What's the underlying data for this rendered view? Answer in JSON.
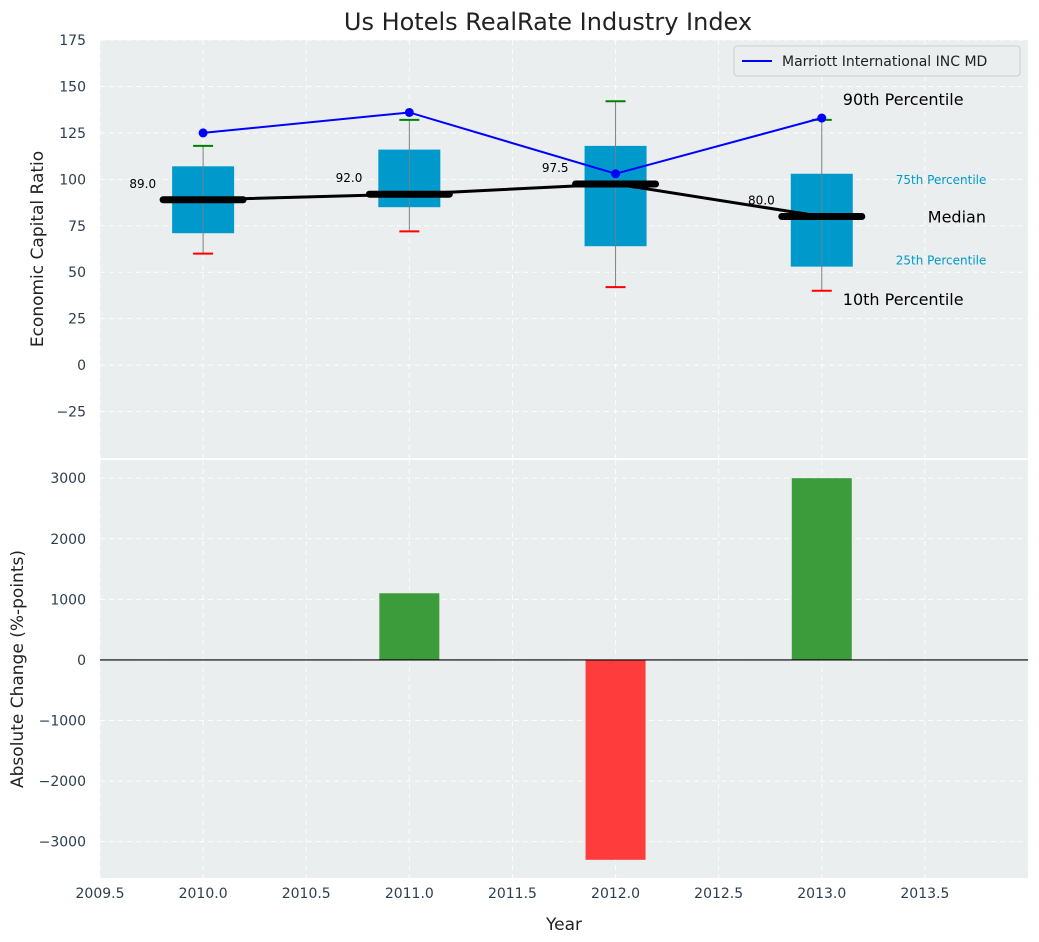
{
  "chart_data": [
    {
      "type": "box",
      "title": "Us Hotels RealRate Industry Index",
      "xlabel": "",
      "ylabel": "Economic Capital Ratio",
      "xlim": [
        2009.5,
        2014.0
      ],
      "ylim": [
        -50,
        175
      ],
      "yticks": [
        -25,
        0,
        25,
        50,
        75,
        100,
        125,
        150,
        175
      ],
      "ytick_labels": [
        "−25",
        "0",
        "25",
        "50",
        "75",
        "100",
        "125",
        "150",
        "175"
      ],
      "grid": true,
      "categories": [
        2010.0,
        2011.0,
        2012.0,
        2013.0
      ],
      "percentiles": {
        "p10": [
          60,
          72,
          42,
          40
        ],
        "p25": [
          71,
          85,
          64,
          53
        ],
        "median": [
          89.0,
          92.0,
          97.5,
          80.0
        ],
        "p75": [
          107,
          116,
          118,
          103
        ],
        "p90": [
          118,
          132,
          142,
          132
        ]
      },
      "median_labels": [
        "89.0",
        "92.0",
        "97.5",
        "80.0"
      ],
      "series": [
        {
          "name": "Marriott International INC MD",
          "x": [
            2010.0,
            2011.0,
            2012.0,
            2013.0
          ],
          "values": [
            125,
            136,
            103,
            133
          ],
          "color": "#0000ff"
        }
      ],
      "legend": {
        "position": "top-right",
        "entries": [
          "Marriott International INC MD"
        ]
      },
      "annotations": {
        "p90": "90th Percentile",
        "p75": "75th Percentile",
        "median": "Median",
        "p25": "25th Percentile",
        "p10": "10th Percentile"
      },
      "colors": {
        "box": "#0099cc",
        "median": "#000000",
        "p90_cap": "#008000",
        "p10_cap": "#ff0000",
        "whisker": "#808080",
        "company": "#0000ff",
        "background": "#eaeeee"
      }
    },
    {
      "type": "bar",
      "xlabel": "Year",
      "ylabel": "Absolute Change (%-points)",
      "xlim": [
        2009.5,
        2014.0
      ],
      "ylim": [
        -3600,
        3300
      ],
      "yticks": [
        -3000,
        -2000,
        -1000,
        0,
        1000,
        2000,
        3000
      ],
      "ytick_labels": [
        "−3000",
        "−2000",
        "−1000",
        "0",
        "1000",
        "2000",
        "3000"
      ],
      "xticks": [
        2009.5,
        2010.0,
        2010.5,
        2011.0,
        2011.5,
        2012.0,
        2012.5,
        2013.0,
        2013.5
      ],
      "xtick_labels": [
        "2009.5",
        "2010.0",
        "2010.5",
        "2011.0",
        "2011.5",
        "2012.0",
        "2012.5",
        "2013.0",
        "2013.5"
      ],
      "grid": true,
      "x": [
        2011.0,
        2012.0,
        2013.0
      ],
      "values": [
        1100,
        -3300,
        3000
      ],
      "colors": {
        "positive": "#3c9c3c",
        "negative": "#ff3c3c",
        "zero_line": "#000000",
        "background": "#eaeeee"
      }
    }
  ]
}
